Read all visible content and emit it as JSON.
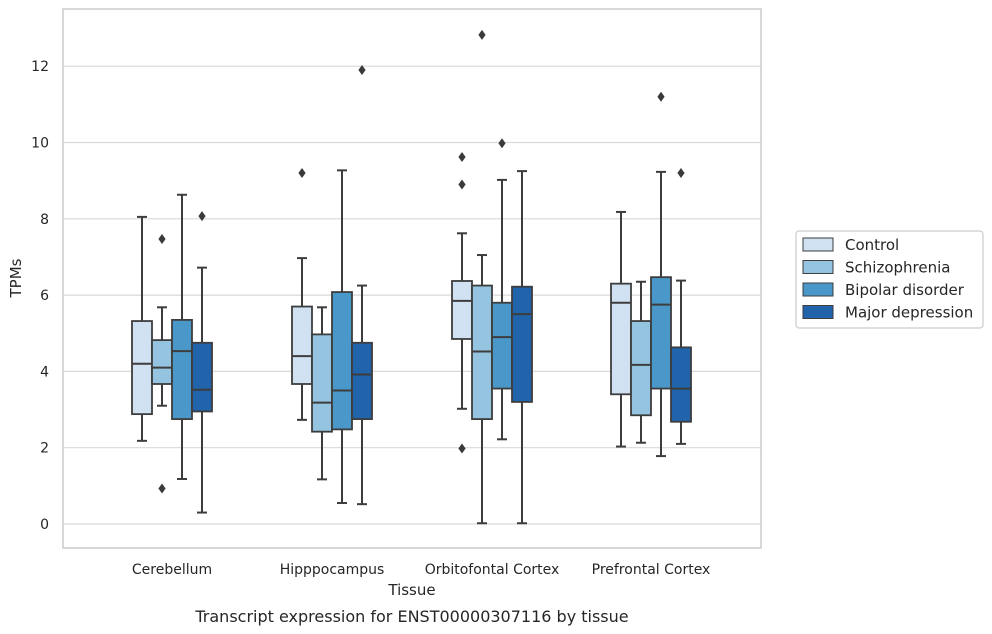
{
  "chart_data": {
    "type": "box",
    "xlabel": "Tissue",
    "ylabel": "TPMs",
    "caption": "Transcript expression for ENST00000307116 by tissue",
    "ylim": [
      -0.6,
      13.4
    ],
    "yticks": [
      0,
      2,
      4,
      6,
      8,
      10,
      12
    ],
    "grid": "horizontal",
    "legend_position": "right",
    "categories": [
      "Cerebellum",
      "Hipppocampus",
      "Orbitofontal Cortex",
      "Prefrontal Cortex"
    ],
    "series": [
      {
        "name": "Control",
        "color": "#d0e1f2",
        "boxes": [
          {
            "q1": 2.88,
            "median": 4.2,
            "q3": 5.32,
            "whisker_low": 2.18,
            "whisker_high": 8.05,
            "outliers": []
          },
          {
            "q1": 3.67,
            "median": 4.4,
            "q3": 5.7,
            "whisker_low": 2.73,
            "whisker_high": 6.97,
            "outliers": [
              9.2
            ]
          },
          {
            "q1": 4.85,
            "median": 5.85,
            "q3": 6.37,
            "whisker_low": 3.02,
            "whisker_high": 7.62,
            "outliers": [
              9.62,
              8.9,
              1.98
            ]
          },
          {
            "q1": 3.4,
            "median": 5.8,
            "q3": 6.3,
            "whisker_low": 2.03,
            "whisker_high": 8.18,
            "outliers": []
          }
        ]
      },
      {
        "name": "Schizophrenia",
        "color": "#94c4df",
        "boxes": [
          {
            "q1": 3.67,
            "median": 4.1,
            "q3": 4.82,
            "whisker_low": 3.1,
            "whisker_high": 5.68,
            "outliers": [
              7.47,
              0.93
            ]
          },
          {
            "q1": 2.42,
            "median": 3.18,
            "q3": 4.97,
            "whisker_low": 1.17,
            "whisker_high": 5.68,
            "outliers": []
          },
          {
            "q1": 2.75,
            "median": 4.52,
            "q3": 6.25,
            "whisker_low": 0.02,
            "whisker_high": 7.05,
            "outliers": [
              12.82
            ]
          },
          {
            "q1": 2.85,
            "median": 4.17,
            "q3": 5.32,
            "whisker_low": 2.13,
            "whisker_high": 6.35,
            "outliers": []
          }
        ]
      },
      {
        "name": "Bipolar disorder",
        "color": "#4a98c9",
        "boxes": [
          {
            "q1": 2.75,
            "median": 4.53,
            "q3": 5.35,
            "whisker_low": 1.18,
            "whisker_high": 8.63,
            "outliers": []
          },
          {
            "q1": 2.48,
            "median": 3.5,
            "q3": 6.08,
            "whisker_low": 0.55,
            "whisker_high": 9.27,
            "outliers": []
          },
          {
            "q1": 3.55,
            "median": 4.9,
            "q3": 5.8,
            "whisker_low": 2.22,
            "whisker_high": 9.02,
            "outliers": [
              9.98
            ]
          },
          {
            "q1": 3.55,
            "median": 5.75,
            "q3": 6.47,
            "whisker_low": 1.78,
            "whisker_high": 9.23,
            "outliers": [
              11.2
            ]
          }
        ]
      },
      {
        "name": "Major depression",
        "color": "#2164ab",
        "boxes": [
          {
            "q1": 2.95,
            "median": 3.52,
            "q3": 4.75,
            "whisker_low": 0.3,
            "whisker_high": 6.72,
            "outliers": [
              8.07
            ]
          },
          {
            "q1": 2.75,
            "median": 3.92,
            "q3": 4.75,
            "whisker_low": 0.52,
            "whisker_high": 6.25,
            "outliers": [
              11.9
            ]
          },
          {
            "q1": 3.2,
            "median": 5.5,
            "q3": 6.22,
            "whisker_low": 0.02,
            "whisker_high": 9.25,
            "outliers": []
          },
          {
            "q1": 2.68,
            "median": 3.55,
            "q3": 4.63,
            "whisker_low": 2.1,
            "whisker_high": 6.38,
            "outliers": [
              9.2
            ]
          }
        ]
      }
    ]
  }
}
